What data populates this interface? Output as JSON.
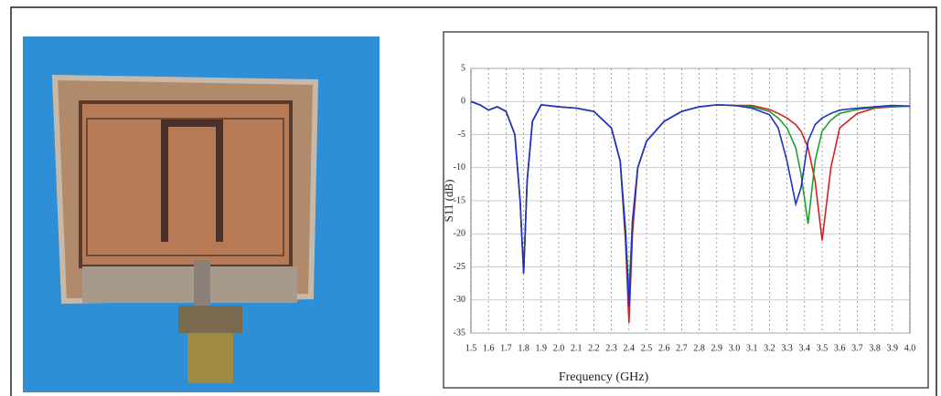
{
  "chart_data": {
    "type": "line",
    "x_label": "Frequency (GHz)",
    "y_label": "S11 (dB)",
    "x": [
      1.5,
      1.55,
      1.6,
      1.65,
      1.7,
      1.75,
      1.78,
      1.8,
      1.82,
      1.85,
      1.9,
      2.0,
      2.1,
      2.2,
      2.3,
      2.35,
      2.38,
      2.4,
      2.42,
      2.45,
      2.5,
      2.6,
      2.7,
      2.8,
      2.9,
      3.0,
      3.1,
      3.2,
      3.25,
      3.3,
      3.35,
      3.38,
      3.42,
      3.46,
      3.5,
      3.55,
      3.6,
      3.7,
      3.8,
      3.9,
      4.0
    ],
    "series": [
      {
        "color": "#d42020",
        "values": [
          0,
          -0.5,
          -1.3,
          -0.8,
          -1.5,
          -5,
          -15,
          -26,
          -12,
          -3,
          -0.5,
          -0.8,
          -1,
          -1.5,
          -4,
          -9,
          -21,
          -33.5,
          -20,
          -10,
          -6,
          -3,
          -1.5,
          -0.8,
          -0.5,
          -0.6,
          -0.6,
          -1.2,
          -1.8,
          -2.5,
          -3.5,
          -4.5,
          -7,
          -12,
          -21,
          -10,
          -4,
          -1.8,
          -1,
          -0.8,
          -0.7
        ]
      },
      {
        "color": "#20a030",
        "values": [
          0,
          -0.5,
          -1.3,
          -0.8,
          -1.5,
          -5,
          -15,
          -26,
          -12,
          -3,
          -0.5,
          -0.8,
          -1,
          -1.5,
          -4,
          -9,
          -19,
          -29,
          -18,
          -10,
          -6,
          -3,
          -1.5,
          -0.8,
          -0.5,
          -0.6,
          -0.8,
          -1.5,
          -2.5,
          -4,
          -7,
          -11,
          -18.5,
          -9,
          -4.5,
          -2.8,
          -1.8,
          -1.2,
          -0.9,
          -0.7,
          -0.7
        ]
      },
      {
        "color": "#2030c8",
        "values": [
          0,
          -0.5,
          -1.3,
          -0.8,
          -1.5,
          -5,
          -15,
          -26,
          -12,
          -3,
          -0.5,
          -0.8,
          -1,
          -1.5,
          -4,
          -9,
          -20,
          -31,
          -18,
          -10,
          -6,
          -3,
          -1.5,
          -0.8,
          -0.5,
          -0.6,
          -1,
          -2,
          -4,
          -9,
          -15.5,
          -13,
          -6,
          -3.5,
          -2.5,
          -1.8,
          -1.3,
          -1,
          -0.8,
          -0.6,
          -0.7
        ]
      }
    ],
    "xlim": [
      1.5,
      4.0
    ],
    "xticks": [
      1.5,
      1.6,
      1.7,
      1.8,
      1.9,
      {
        "value": 2,
        "label": "2.0"
      },
      2.1,
      2.2,
      2.3,
      2.4,
      2.5,
      2.6,
      2.7,
      2.8,
      2.9,
      {
        "value": 3,
        "label": "3.0"
      },
      3.1,
      3.2,
      3.3,
      3.4,
      3.5,
      3.6,
      3.7,
      3.8,
      3.9,
      {
        "value": 4,
        "label": "4.0"
      }
    ],
    "ylim": [
      -35,
      5
    ],
    "yticks": [
      5,
      0,
      -5,
      -10,
      -15,
      -20,
      -25,
      -30,
      -35
    ],
    "grid": true
  }
}
